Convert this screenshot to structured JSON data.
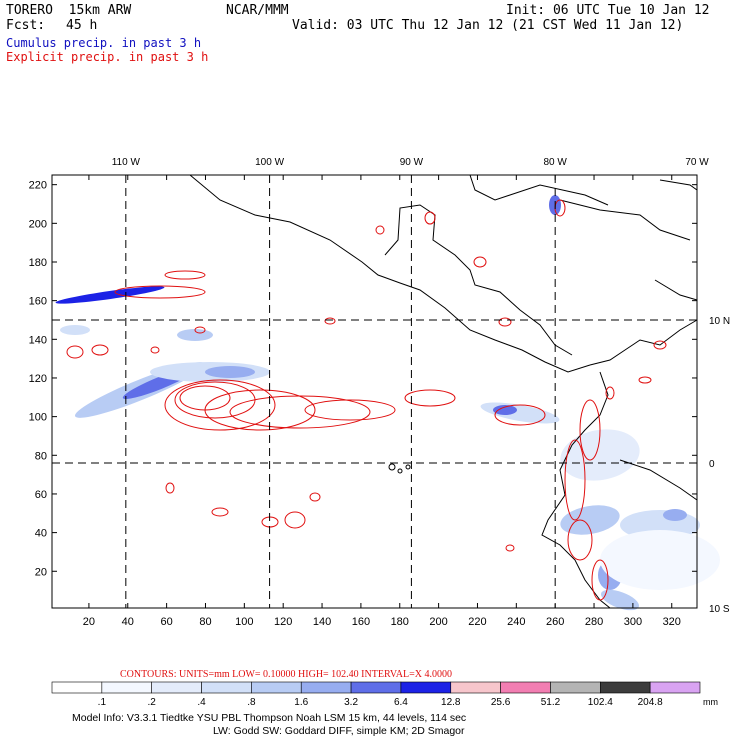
{
  "header": {
    "model": "TORERO  15km ARW",
    "org": "NCAR/MMM",
    "init": "Init: 06 UTC Tue 10 Jan 12",
    "fcst_label": "Fcst:",
    "fcst_value": "45 h",
    "valid": "Valid: 03 UTC Thu 12 Jan 12 (21 CST Wed 11 Jan 12)",
    "field1": "Cumulus precip. in past 3 h",
    "field2": "Explicit precip. in past 3 h",
    "colors": {
      "field1": "#1010c0",
      "field2": "#e01010"
    }
  },
  "chart_data": {
    "type": "heatmap",
    "x_ticks": [
      20,
      40,
      60,
      80,
      100,
      120,
      140,
      160,
      180,
      200,
      220,
      240,
      260,
      280,
      300,
      320
    ],
    "y_ticks": [
      20,
      40,
      60,
      80,
      100,
      120,
      140,
      160,
      180,
      200,
      220
    ],
    "xlim": [
      1,
      333
    ],
    "ylim": [
      1,
      225
    ],
    "lon_labels": [
      {
        "text": "110 W",
        "x": 39
      },
      {
        "text": "100 W",
        "x": 113
      },
      {
        "text": "90 W",
        "x": 186
      },
      {
        "text": "80 W",
        "x": 260
      },
      {
        "text": "70 W",
        "x": 333
      }
    ],
    "lat_labels": [
      {
        "text": "10 N",
        "y": 150
      },
      {
        "text": "0",
        "y": 76
      },
      {
        "text": "10 S",
        "y": 1
      }
    ],
    "grid": "dashed lat/lon lines",
    "contours": {
      "units": "mm",
      "low": "0.10000",
      "high": "102.40",
      "interval": "X  4.0000",
      "line_color": "#e01010"
    },
    "colorbar": {
      "unit": "mm",
      "labels": [
        ".1",
        ".2",
        ".4",
        ".8",
        "1.6",
        "3.2",
        "6.4",
        "12.8",
        "25.6",
        "51.2",
        "102.4",
        "204.8"
      ],
      "colors": [
        "#ffffff",
        "#f4f8ff",
        "#e4ecfb",
        "#d2e0f8",
        "#b8ccf4",
        "#97adf0",
        "#5f6ee8",
        "#1c22e6",
        "#f7c6cc",
        "#f27eb2",
        "#b4b4b4",
        "#3c3c3c",
        "#d9a3f2"
      ]
    }
  },
  "footer": {
    "contours_text": "CONTOURS:  UNITS=mm  LOW= 0.10000      HIGH=  102.40      INTERVAL=X  4.0000",
    "model_info_line1": "Model Info: V3.3.1     Tiedtke YSU PBL  Thompson     Noah LSM  15 km,    44 levels,   114 sec",
    "model_info_line2": "LW: Godd SW: Goddard DIFF, simple KM; 2D Smagor"
  }
}
